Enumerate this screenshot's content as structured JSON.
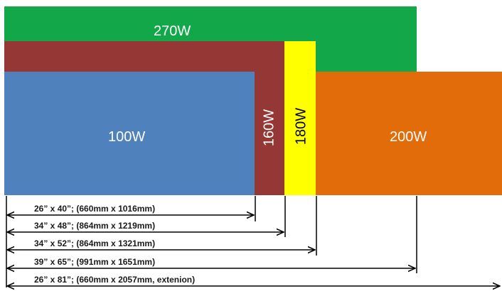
{
  "blocks": {
    "w270": {
      "label": "270W",
      "color": "#12a84a"
    },
    "w160": {
      "label": "160W",
      "color": "#953735"
    },
    "w180": {
      "label": "180W",
      "color": "#ffff00"
    },
    "w100": {
      "label": "100W",
      "color": "#4f81bd"
    },
    "w200": {
      "label": "200W",
      "color": "#e36c0a"
    }
  },
  "dimensions": [
    {
      "label": "26” x 40”; (660mm x 1016mm)"
    },
    {
      "label": "34” x 48”; (864mm x 1219mm)"
    },
    {
      "label": "34” x 52”; (864mm x 1321mm)"
    },
    {
      "label": "39” x 65”; (991mm x 1651mm)"
    },
    {
      "label": "26” x 81”; (660mm x 2057mm, extenion)"
    }
  ]
}
